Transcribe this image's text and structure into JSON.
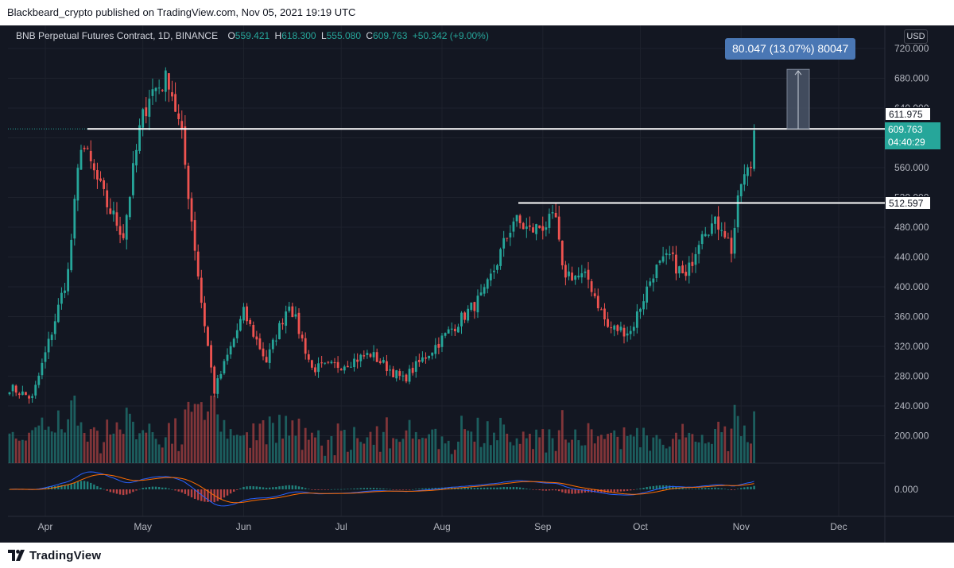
{
  "publisher": "Blackbeard_crypto published on TradingView.com, Nov 05, 2021 19:19 UTC",
  "footer": {
    "brand": "TradingView"
  },
  "legend": {
    "symbol": "BNB Perpetual Futures Contract, 1D, BINANCE",
    "o_label": "O",
    "o_value": "559.421",
    "h_label": "H",
    "h_value": "618.300",
    "l_label": "L",
    "l_value": "555.080",
    "c_label": "C",
    "c_value": "609.763",
    "change": "+50.342 (+9.00%)"
  },
  "currency": "USD",
  "measure_label": "80.047 (13.07%) 80047",
  "price_tags": {
    "resistance": "611.975",
    "support": "512.597",
    "last_price": "609.763",
    "countdown": "04:40:29"
  },
  "colors": {
    "background": "#131722",
    "up": "#26a69a",
    "down": "#ef5350",
    "macd": "#2962ff",
    "signal": "#ff6d00",
    "measure": "#4a77b4"
  },
  "chart_data": {
    "type": "candlestick",
    "title": "BNB Perpetual Futures Contract, 1D, BINANCE",
    "y_axis_ticks": [
      720,
      680,
      640,
      600,
      560,
      520,
      480,
      440,
      400,
      360,
      320,
      280,
      240,
      200
    ],
    "y_tick_labels": [
      "720.000",
      "680.000",
      "640.000",
      "600.000",
      "560.000",
      "520.000",
      "480.000",
      "440.000",
      "400.000",
      "360.000",
      "320.000",
      "280.000",
      "240.000",
      "200.000"
    ],
    "indicator_tick_label": "0.000",
    "x_axis_labels": [
      "Apr",
      "May",
      "Jun",
      "Jul",
      "Aug",
      "Sep",
      "Oct",
      "Nov",
      "Dec"
    ],
    "horizontal_levels": [
      611.975,
      512.597
    ],
    "key_prices": [
      {
        "date": "2021-03-21",
        "close": 265
      },
      {
        "date": "2021-03-28",
        "close": 250
      },
      {
        "date": "2021-04-03",
        "close": 340
      },
      {
        "date": "2021-04-08",
        "close": 420
      },
      {
        "date": "2021-04-12",
        "close": 595
      },
      {
        "date": "2021-04-20",
        "close": 510
      },
      {
        "date": "2021-04-25",
        "close": 470
      },
      {
        "date": "2021-04-30",
        "close": 610
      },
      {
        "date": "2021-05-03",
        "close": 660
      },
      {
        "date": "2021-05-09",
        "close": 680
      },
      {
        "date": "2021-05-13",
        "close": 600
      },
      {
        "date": "2021-05-19",
        "close": 380
      },
      {
        "date": "2021-05-23",
        "close": 260
      },
      {
        "date": "2021-06-01",
        "close": 365
      },
      {
        "date": "2021-06-08",
        "close": 300
      },
      {
        "date": "2021-06-15",
        "close": 380
      },
      {
        "date": "2021-06-22",
        "close": 290
      },
      {
        "date": "2021-07-01",
        "close": 295
      },
      {
        "date": "2021-07-10",
        "close": 310
      },
      {
        "date": "2021-07-20",
        "close": 275
      },
      {
        "date": "2021-08-01",
        "close": 330
      },
      {
        "date": "2021-08-14",
        "close": 390
      },
      {
        "date": "2021-08-23",
        "close": 490
      },
      {
        "date": "2021-08-28",
        "close": 475
      },
      {
        "date": "2021-09-05",
        "close": 490
      },
      {
        "date": "2021-09-07",
        "close": 420
      },
      {
        "date": "2021-09-15",
        "close": 410
      },
      {
        "date": "2021-09-21",
        "close": 345
      },
      {
        "date": "2021-09-28",
        "close": 340
      },
      {
        "date": "2021-10-05",
        "close": 420
      },
      {
        "date": "2021-10-10",
        "close": 440
      },
      {
        "date": "2021-10-15",
        "close": 410
      },
      {
        "date": "2021-10-20",
        "close": 480
      },
      {
        "date": "2021-10-26",
        "close": 485
      },
      {
        "date": "2021-10-29",
        "close": 450
      },
      {
        "date": "2021-11-01",
        "close": 540
      },
      {
        "date": "2021-11-04",
        "close": 559.421
      },
      {
        "date": "2021-11-05",
        "close": 609.763
      }
    ]
  }
}
